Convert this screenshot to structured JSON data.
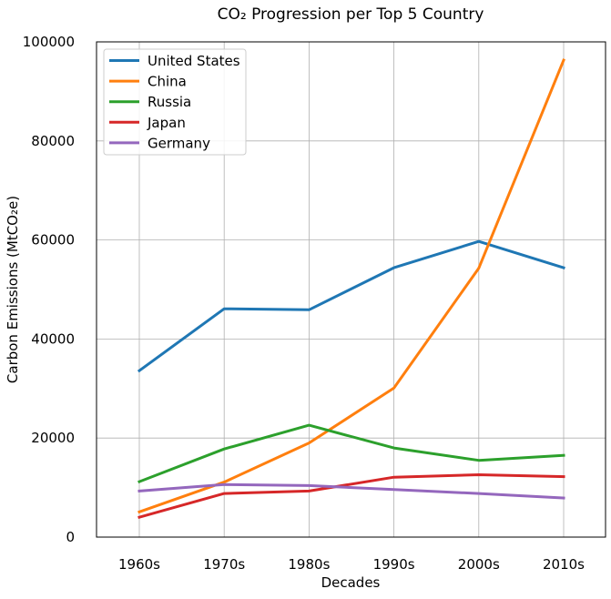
{
  "chart_data": {
    "type": "line",
    "title": "CO₂ Progression per Top 5 Country",
    "xlabel": "Decades",
    "ylabel": "Carbon Emissions (MtCO₂e)",
    "categories": [
      "1960s",
      "1970s",
      "1980s",
      "1990s",
      "2000s",
      "2010s"
    ],
    "ylim": [
      0,
      100000
    ],
    "yticks": [
      0,
      20000,
      40000,
      60000,
      80000,
      100000
    ],
    "ytick_labels": [
      "0",
      "20000",
      "40000",
      "60000",
      "80000",
      "100000"
    ],
    "grid": true,
    "legend_position": "top-left",
    "series": [
      {
        "name": "United States",
        "color": "#1f77b4",
        "values": [
          33600,
          46100,
          45900,
          54400,
          59700,
          54400
        ]
      },
      {
        "name": "China",
        "color": "#ff7f0e",
        "values": [
          5100,
          11100,
          19000,
          30100,
          54300,
          96300
        ]
      },
      {
        "name": "Russia",
        "color": "#2ca02c",
        "values": [
          11200,
          17800,
          22600,
          18000,
          15500,
          16500
        ]
      },
      {
        "name": "Japan",
        "color": "#d62728",
        "values": [
          4000,
          8800,
          9300,
          12100,
          12600,
          12200
        ]
      },
      {
        "name": "Germany",
        "color": "#9467bd",
        "values": [
          9300,
          10600,
          10400,
          9600,
          8800,
          7900
        ]
      }
    ]
  }
}
